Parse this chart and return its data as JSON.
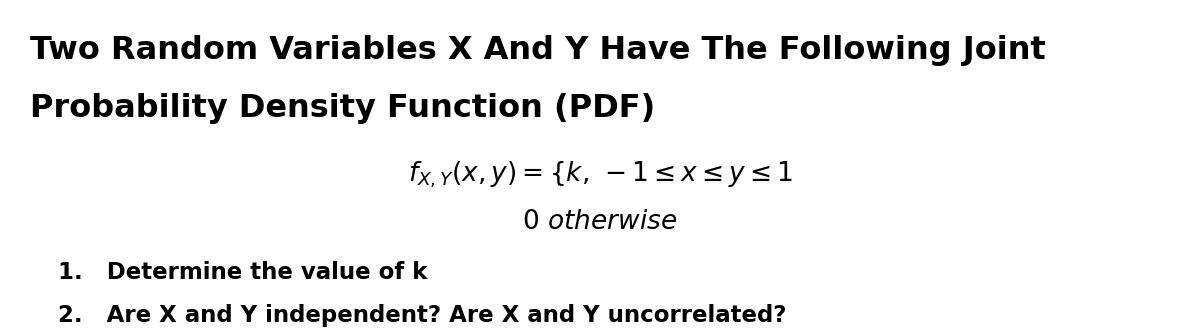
{
  "title_line1": "Two Random Variables X And Y Have The Following Joint",
  "title_line2": "Probability Density Function (PDF)",
  "formula_main": "$f_{X,Y}(x, y) = \\{ k,\\, -1 \\leq x \\leq y \\leq 1$",
  "formula_otherwise": "$0\\ \\mathit{otherwise}$",
  "item1": "1.   Determine the value of k",
  "item2": "2.   Are X and Y independent? Are X and Y uncorrelated?",
  "bg_color": "#ffffff",
  "text_color": "#000000",
  "title_fontsize": 23,
  "formula_fontsize": 19,
  "item_fontsize": 16.5
}
